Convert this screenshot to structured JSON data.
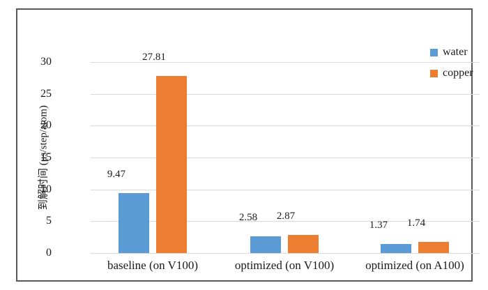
{
  "chart_data": {
    "type": "bar",
    "title": "",
    "xlabel": "",
    "ylabel": "到解时间 (μs/step/atom)",
    "categories": [
      "baseline (on V100)",
      "optimized (on V100)",
      "optimized (on A100)"
    ],
    "series": [
      {
        "name": "water",
        "color": "#5B9BD5",
        "values": [
          9.47,
          2.58,
          1.37
        ]
      },
      {
        "name": "copper",
        "color": "#ED7D31",
        "values": [
          27.81,
          2.87,
          1.74
        ]
      }
    ],
    "value_labels": [
      "9.47",
      "27.81",
      "2.58",
      "2.87",
      "1.37",
      "1.74"
    ],
    "yticks": [
      "0",
      "5",
      "10",
      "15",
      "20",
      "25",
      "30"
    ],
    "ylim": [
      0,
      30
    ],
    "grid": true,
    "legend_position": "top-right",
    "colors": {
      "gridline": "#d9d9d9",
      "frame_border": "#595959",
      "text": "#1a1a1a",
      "background": "#ffffff"
    }
  }
}
